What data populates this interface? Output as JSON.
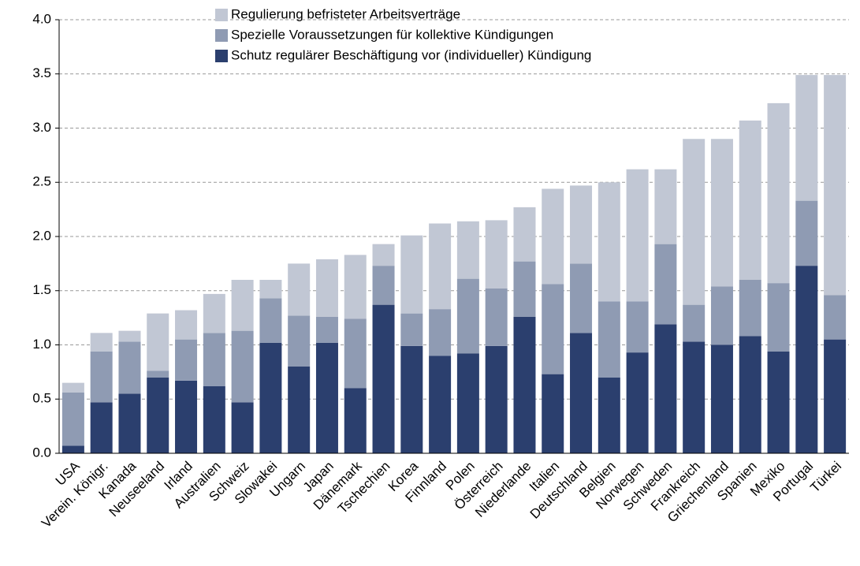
{
  "chart_data": {
    "type": "stacked_bar",
    "categories": [
      "USA",
      "Verein. Königr.",
      "Kanada",
      "Neuseeland",
      "Irland",
      "Australien",
      "Schweiz",
      "Slowakei",
      "Ungarn",
      "Japan",
      "Dänemark",
      "Tschechien",
      "Korea",
      "Finnland",
      "Polen",
      "Österreich",
      "Niederlande",
      "Italien",
      "Deutschland",
      "Belgien",
      "Norwegen",
      "Schweden",
      "Frankreich",
      "Griechenland",
      "Spanien",
      "Mexiko",
      "Portugal",
      "Türkei"
    ],
    "series": [
      {
        "name": "Schutz regulärer Beschäftigung vor (individueller) Kündigung",
        "color": "#2b3f6e",
        "values": [
          0.07,
          0.47,
          0.55,
          0.7,
          0.67,
          0.62,
          0.47,
          1.02,
          0.8,
          1.02,
          0.6,
          1.37,
          0.99,
          0.9,
          0.92,
          0.99,
          1.26,
          0.73,
          1.11,
          0.7,
          0.93,
          1.19,
          1.03,
          1.0,
          1.08,
          0.94,
          1.73,
          1.05
        ]
      },
      {
        "name": "Spezielle Voraussetzungen für kollektive Kündigungen",
        "color": "#8f9bb3",
        "values": [
          0.49,
          0.47,
          0.48,
          0.06,
          0.38,
          0.49,
          0.66,
          0.41,
          0.47,
          0.24,
          0.64,
          0.36,
          0.3,
          0.43,
          0.69,
          0.53,
          0.51,
          0.83,
          0.64,
          0.7,
          0.47,
          0.74,
          0.34,
          0.54,
          0.52,
          0.63,
          0.6,
          0.41
        ]
      },
      {
        "name": "Regulierung befristeter Arbeitsverträge",
        "color": "#c1c7d4",
        "values": [
          0.09,
          0.17,
          0.1,
          0.53,
          0.27,
          0.36,
          0.47,
          0.17,
          0.48,
          0.53,
          0.59,
          0.2,
          0.72,
          0.79,
          0.53,
          0.63,
          0.5,
          0.88,
          0.72,
          1.1,
          1.22,
          0.69,
          1.53,
          1.36,
          1.47,
          1.66,
          1.16,
          2.03
        ]
      }
    ],
    "ylim": [
      0,
      4
    ],
    "yticks": [
      {
        "value": 0,
        "label": "0.0"
      },
      0.5,
      {
        "value": 1,
        "label": "1.0"
      },
      1.5,
      {
        "value": 2,
        "label": "2.0"
      },
      2.5,
      {
        "value": 3,
        "label": "3.0"
      },
      3.5,
      {
        "value": 4,
        "label": "4.0"
      }
    ],
    "grid": true
  }
}
